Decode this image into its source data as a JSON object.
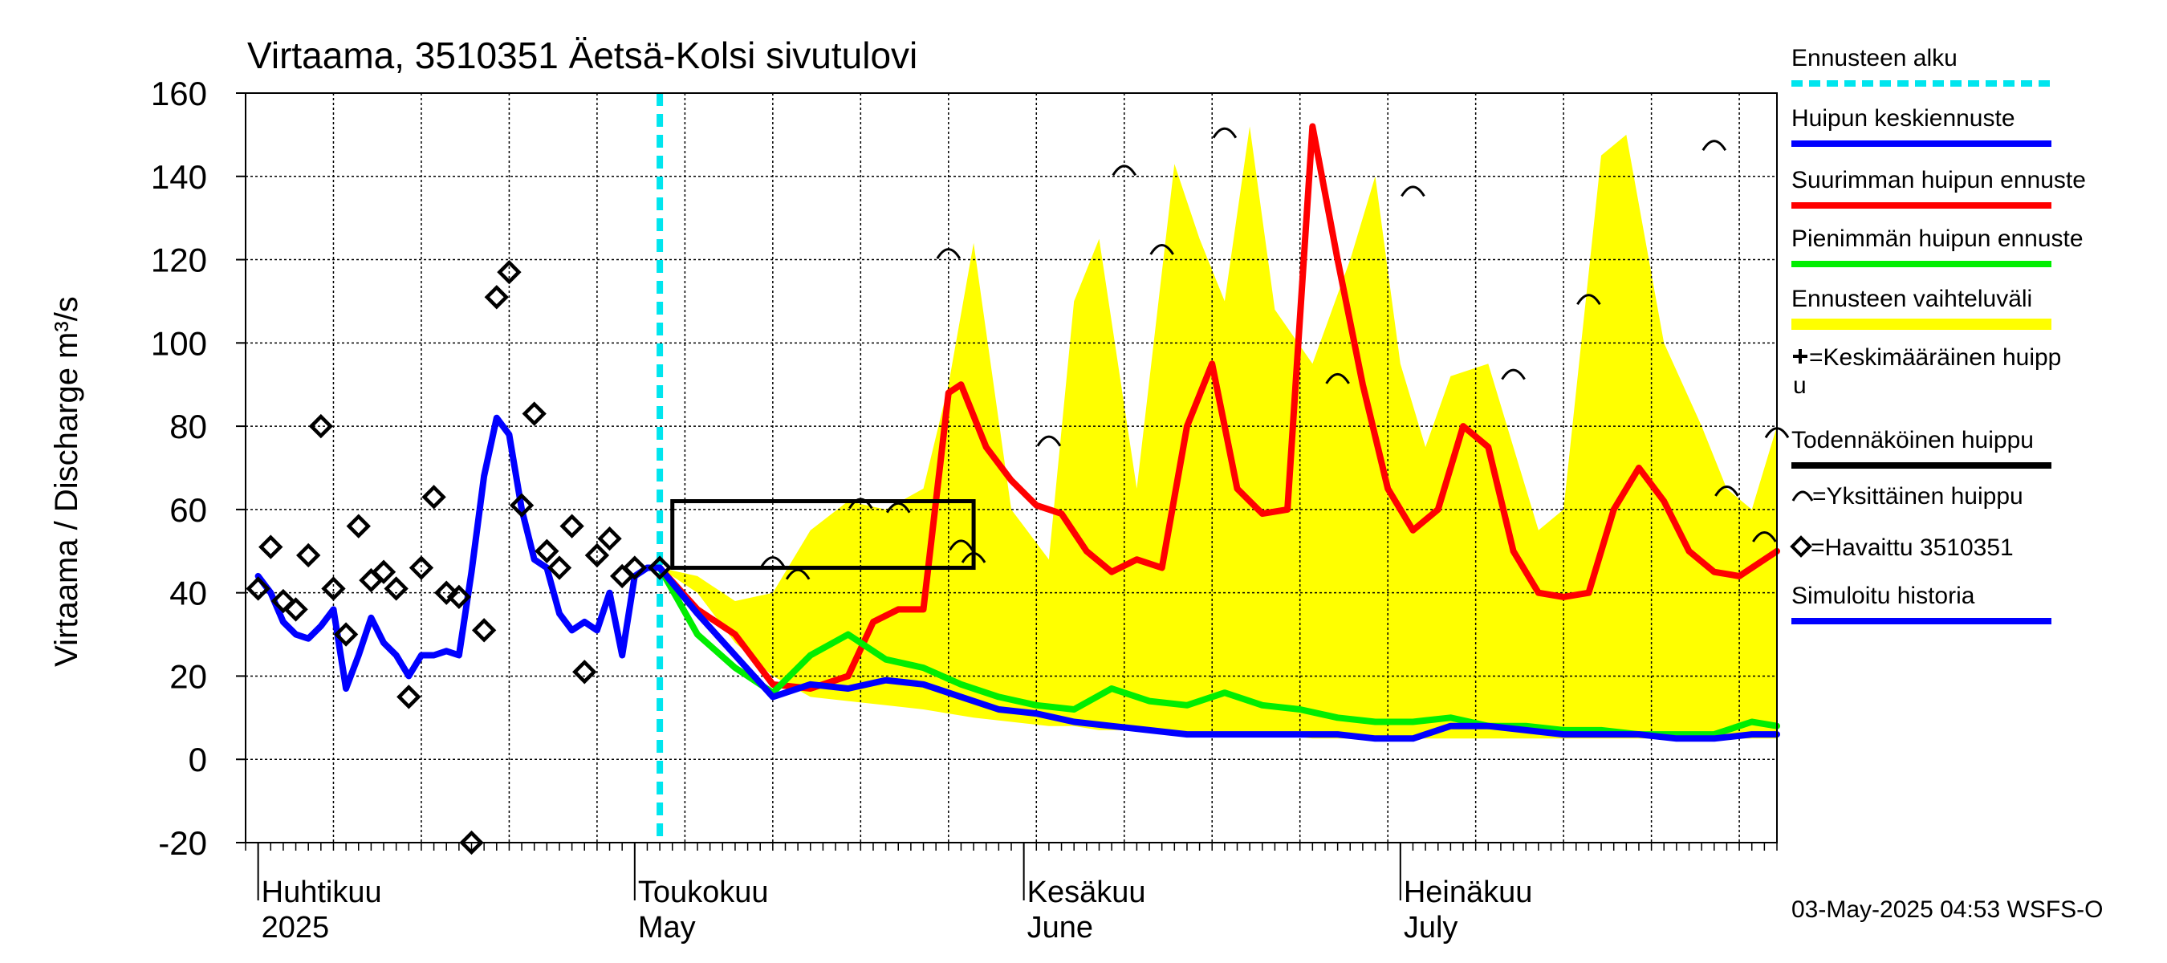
{
  "chart_data": {
    "type": "line",
    "title": "Virtaama, 3510351 Äetsä-Kolsi sivutulovi",
    "ylabel": "Virtaama / Discharge    m³/s",
    "ylim": [
      -20,
      160
    ],
    "yticks": [
      -20,
      0,
      20,
      40,
      60,
      80,
      100,
      120,
      140,
      160
    ],
    "xlim": [
      "2025-03-31",
      "2025-07-31"
    ],
    "grid": true,
    "legend_position": "right",
    "timestamp": "03-May-2025 04:53 WSFS-O",
    "months": [
      {
        "date": "2025-04-01",
        "fi": "Huhtikuu",
        "en": "2025"
      },
      {
        "date": "2025-05-01",
        "fi": "Toukokuu",
        "en": "May"
      },
      {
        "date": "2025-06-01",
        "fi": "Kesäkuu",
        "en": "June"
      },
      {
        "date": "2025-07-01",
        "fi": "Heinäkuu",
        "en": "July"
      }
    ],
    "forecast_start": "2025-05-03",
    "legend": [
      {
        "label": "Ennusteen alku",
        "color": "#00e5ee",
        "style": "dashed"
      },
      {
        "label": "Huipun keskiennuste",
        "color": "#0000ff",
        "style": "line"
      },
      {
        "label": "Suurimman huipun ennuste",
        "color": "#ff0000",
        "style": "line"
      },
      {
        "label": "Pienimmän huipun ennuste",
        "color": "#00ee00",
        "style": "line"
      },
      {
        "label": "Ennusteen vaihteluväli",
        "color": "#ffff00",
        "style": "band"
      },
      {
        "label": "=Keskimääräinen huippu",
        "color": "#000000",
        "style": "plus"
      },
      {
        "label": "Todennäköinen huippu",
        "color": "#000000",
        "style": "line"
      },
      {
        "label": "=Yksittäinen huippu",
        "color": "#000000",
        "style": "arc"
      },
      {
        "label": "=Havaittu 3510351",
        "color": "#000000",
        "style": "diamond"
      },
      {
        "label": "Simuloitu historia",
        "color": "#0000ff",
        "style": "line"
      }
    ],
    "probable_peak_box": {
      "x0": "2025-05-04",
      "x1": "2025-05-28",
      "y0": 46,
      "y1": 62
    },
    "band": {
      "x": [
        "2025-05-03",
        "2025-05-06",
        "2025-05-09",
        "2025-05-12",
        "2025-05-15",
        "2025-05-18",
        "2025-05-21",
        "2025-05-24",
        "2025-05-26",
        "2025-05-28",
        "2025-05-31",
        "2025-06-03",
        "2025-06-05",
        "2025-06-07",
        "2025-06-10",
        "2025-06-13",
        "2025-06-15",
        "2025-06-17",
        "2025-06-19",
        "2025-06-21",
        "2025-06-24",
        "2025-06-27",
        "2025-06-29",
        "2025-07-01",
        "2025-07-03",
        "2025-07-05",
        "2025-07-08",
        "2025-07-10",
        "2025-07-12",
        "2025-07-14",
        "2025-07-17",
        "2025-07-19",
        "2025-07-22",
        "2025-07-25",
        "2025-07-27",
        "2025-07-29",
        "2025-07-31"
      ],
      "upper": [
        46,
        44,
        38,
        40,
        55,
        62,
        60,
        65,
        90,
        124,
        60,
        48,
        110,
        125,
        65,
        143,
        125,
        110,
        152,
        108,
        95,
        120,
        140,
        95,
        75,
        92,
        95,
        75,
        55,
        60,
        145,
        150,
        100,
        80,
        65,
        60,
        80
      ],
      "lower": [
        46,
        40,
        28,
        20,
        15,
        14,
        13,
        12,
        11,
        10,
        9,
        8,
        8,
        7,
        7,
        7,
        6,
        6,
        6,
        6,
        5,
        5,
        5,
        5,
        5,
        5,
        5,
        5,
        5,
        5,
        5,
        5,
        5,
        5,
        5,
        5,
        5
      ]
    },
    "series": [
      {
        "name": "Suurimman huipun ennuste",
        "color": "#ff0000",
        "x": [
          "2025-05-03",
          "2025-05-06",
          "2025-05-09",
          "2025-05-12",
          "2025-05-15",
          "2025-05-18",
          "2025-05-20",
          "2025-05-22",
          "2025-05-24",
          "2025-05-26",
          "2025-05-27",
          "2025-05-29",
          "2025-05-31",
          "2025-06-02",
          "2025-06-04",
          "2025-06-06",
          "2025-06-08",
          "2025-06-10",
          "2025-06-12",
          "2025-06-14",
          "2025-06-16",
          "2025-06-18",
          "2025-06-20",
          "2025-06-22",
          "2025-06-24",
          "2025-06-26",
          "2025-06-28",
          "2025-06-30",
          "2025-07-02",
          "2025-07-04",
          "2025-07-06",
          "2025-07-08",
          "2025-07-10",
          "2025-07-12",
          "2025-07-14",
          "2025-07-16",
          "2025-07-18",
          "2025-07-20",
          "2025-07-22",
          "2025-07-24",
          "2025-07-26",
          "2025-07-28",
          "2025-07-31"
        ],
        "y": [
          46,
          36,
          30,
          18,
          17,
          20,
          33,
          36,
          36,
          88,
          90,
          75,
          67,
          61,
          59,
          50,
          45,
          48,
          46,
          80,
          95,
          65,
          59,
          60,
          152,
          120,
          90,
          65,
          55,
          60,
          80,
          75,
          50,
          40,
          39,
          40,
          60,
          70,
          62,
          50,
          45,
          44,
          50
        ]
      },
      {
        "name": "Pienimmän huipun ennuste",
        "color": "#00ee00",
        "x": [
          "2025-05-03",
          "2025-05-06",
          "2025-05-09",
          "2025-05-12",
          "2025-05-15",
          "2025-05-18",
          "2025-05-21",
          "2025-05-24",
          "2025-05-27",
          "2025-05-30",
          "2025-06-02",
          "2025-06-05",
          "2025-06-08",
          "2025-06-11",
          "2025-06-14",
          "2025-06-17",
          "2025-06-20",
          "2025-06-23",
          "2025-06-26",
          "2025-06-29",
          "2025-07-02",
          "2025-07-05",
          "2025-07-08",
          "2025-07-11",
          "2025-07-14",
          "2025-07-17",
          "2025-07-20",
          "2025-07-23",
          "2025-07-26",
          "2025-07-29",
          "2025-07-31"
        ],
        "y": [
          46,
          30,
          22,
          16,
          25,
          30,
          24,
          22,
          18,
          15,
          13,
          12,
          17,
          14,
          13,
          16,
          13,
          12,
          10,
          9,
          9,
          10,
          8,
          8,
          7,
          7,
          6,
          6,
          6,
          9,
          8
        ]
      },
      {
        "name": "Huipun keskiennuste",
        "color": "#0000ff",
        "x": [
          "2025-05-03",
          "2025-05-06",
          "2025-05-09",
          "2025-05-12",
          "2025-05-15",
          "2025-05-18",
          "2025-05-21",
          "2025-05-24",
          "2025-05-27",
          "2025-05-30",
          "2025-06-02",
          "2025-06-05",
          "2025-06-08",
          "2025-06-11",
          "2025-06-14",
          "2025-06-17",
          "2025-06-20",
          "2025-06-23",
          "2025-06-26",
          "2025-06-29",
          "2025-07-02",
          "2025-07-05",
          "2025-07-08",
          "2025-07-11",
          "2025-07-14",
          "2025-07-17",
          "2025-07-20",
          "2025-07-23",
          "2025-07-26",
          "2025-07-29",
          "2025-07-31"
        ],
        "y": [
          46,
          35,
          25,
          15,
          18,
          17,
          19,
          18,
          15,
          12,
          11,
          9,
          8,
          7,
          6,
          6,
          6,
          6,
          6,
          5,
          5,
          8,
          8,
          7,
          6,
          6,
          6,
          5,
          5,
          6,
          6
        ]
      },
      {
        "name": "Simuloitu historia",
        "color": "#0000ff",
        "x": [
          "2025-04-01",
          "2025-04-02",
          "2025-04-03",
          "2025-04-04",
          "2025-04-05",
          "2025-04-06",
          "2025-04-07",
          "2025-04-08",
          "2025-04-09",
          "2025-04-10",
          "2025-04-11",
          "2025-04-12",
          "2025-04-13",
          "2025-04-14",
          "2025-04-15",
          "2025-04-16",
          "2025-04-17",
          "2025-04-18",
          "2025-04-19",
          "2025-04-20",
          "2025-04-21",
          "2025-04-22",
          "2025-04-23",
          "2025-04-24",
          "2025-04-25",
          "2025-04-26",
          "2025-04-27",
          "2025-04-28",
          "2025-04-29",
          "2025-04-30",
          "2025-05-01",
          "2025-05-02",
          "2025-05-03"
        ],
        "y": [
          44,
          40,
          33,
          30,
          29,
          32,
          36,
          17,
          25,
          34,
          28,
          25,
          20,
          25,
          25,
          26,
          25,
          45,
          68,
          82,
          78,
          60,
          48,
          46,
          35,
          31,
          33,
          31,
          40,
          25,
          44,
          46,
          46
        ]
      }
    ],
    "observed": {
      "x": [
        "2025-04-01",
        "2025-04-02",
        "2025-04-03",
        "2025-04-04",
        "2025-04-05",
        "2025-04-06",
        "2025-04-07",
        "2025-04-08",
        "2025-04-09",
        "2025-04-10",
        "2025-04-11",
        "2025-04-12",
        "2025-04-13",
        "2025-04-14",
        "2025-04-15",
        "2025-04-16",
        "2025-04-17",
        "2025-04-18",
        "2025-04-19",
        "2025-04-20",
        "2025-04-21",
        "2025-04-22",
        "2025-04-23",
        "2025-04-24",
        "2025-04-25",
        "2025-04-26",
        "2025-04-27",
        "2025-04-28",
        "2025-04-29",
        "2025-04-30",
        "2025-05-01",
        "2025-05-03"
      ],
      "y": [
        41,
        51,
        38,
        36,
        49,
        80,
        41,
        30,
        56,
        43,
        45,
        41,
        15,
        46,
        63,
        40,
        39,
        -20,
        31,
        111,
        117,
        61,
        83,
        50,
        46,
        56,
        21,
        49,
        53,
        44,
        46,
        46
      ]
    },
    "single_peaks": {
      "x": [
        "2025-05-12",
        "2025-05-14",
        "2025-05-19",
        "2025-05-22",
        "2025-05-26",
        "2025-05-27",
        "2025-05-28",
        "2025-06-03",
        "2025-06-09",
        "2025-06-12",
        "2025-06-17",
        "2025-06-26",
        "2025-07-02",
        "2025-07-10",
        "2025-07-16",
        "2025-07-26",
        "2025-07-27",
        "2025-07-31",
        "2025-07-30"
      ],
      "y": [
        48,
        45,
        62,
        61,
        122,
        52,
        49,
        77,
        142,
        123,
        151,
        92,
        137,
        93,
        111,
        148,
        65,
        79,
        54
      ]
    }
  }
}
